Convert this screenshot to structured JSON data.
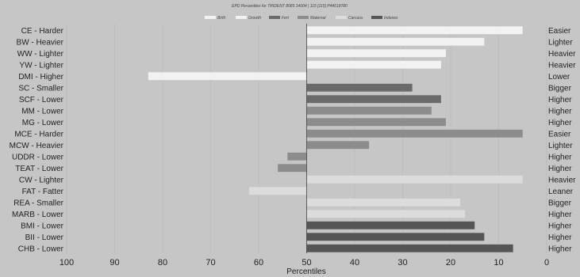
{
  "chart_data": {
    "type": "bar",
    "orientation": "horizontal",
    "title": "EPD Percentiles for TRIDENT 8085 14004 | 115 [115] P44618780",
    "xlabel": "Percentiles",
    "xlim": [
      100,
      0
    ],
    "x_ticks": [
      100,
      90,
      80,
      70,
      60,
      50,
      40,
      30,
      20,
      10,
      0
    ],
    "baseline": 50,
    "grid": true,
    "legend_position": "top-center",
    "legend": [
      {
        "name": "Birth",
        "color": "#f2f2f2"
      },
      {
        "name": "Growth",
        "color": "#f2f2f2"
      },
      {
        "name": "Fert",
        "color": "#6a6a6a"
      },
      {
        "name": "Maternal",
        "color": "#8c8c8c"
      },
      {
        "name": "Carcass",
        "color": "#dcdcdc"
      },
      {
        "name": "Indexes",
        "color": "#555555"
      }
    ],
    "bars": [
      {
        "category": "CE - Harder",
        "opposite": "Easier",
        "value": 5,
        "group": "Birth",
        "color": "#f2f2f2"
      },
      {
        "category": "BW - Heavier",
        "opposite": "Lighter",
        "value": 13,
        "group": "Birth",
        "color": "#f2f2f2"
      },
      {
        "category": "WW - Lighter",
        "opposite": "Heavier",
        "value": 21,
        "group": "Growth",
        "color": "#f2f2f2"
      },
      {
        "category": "YW - Lighter",
        "opposite": "Heavier",
        "value": 22,
        "group": "Growth",
        "color": "#f2f2f2"
      },
      {
        "category": "DMI - Higher",
        "opposite": "Lower",
        "value": 83,
        "group": "Growth",
        "color": "#f2f2f2"
      },
      {
        "category": "SC - Smaller",
        "opposite": "Bigger",
        "value": 28,
        "group": "Fert",
        "color": "#6a6a6a"
      },
      {
        "category": "SCF - Lower",
        "opposite": "Higher",
        "value": 22,
        "group": "Fert",
        "color": "#6a6a6a"
      },
      {
        "category": "MM - Lower",
        "opposite": "Higher",
        "value": 24,
        "group": "Maternal",
        "color": "#8c8c8c"
      },
      {
        "category": "MG - Lower",
        "opposite": "Higher",
        "value": 21,
        "group": "Maternal",
        "color": "#8c8c8c"
      },
      {
        "category": "MCE - Harder",
        "opposite": "Easier",
        "value": 5,
        "group": "Maternal",
        "color": "#8c8c8c"
      },
      {
        "category": "MCW - Heavier",
        "opposite": "Lighter",
        "value": 37,
        "group": "Maternal",
        "color": "#8c8c8c"
      },
      {
        "category": "UDDR - Lower",
        "opposite": "Higher",
        "value": 54,
        "group": "Maternal",
        "color": "#8c8c8c"
      },
      {
        "category": "TEAT - Lower",
        "opposite": "Higher",
        "value": 56,
        "group": "Maternal",
        "color": "#8c8c8c"
      },
      {
        "category": "CW - Lighter",
        "opposite": "Heavier",
        "value": 5,
        "group": "Carcass",
        "color": "#dcdcdc"
      },
      {
        "category": "FAT - Fatter",
        "opposite": "Leaner",
        "value": 62,
        "group": "Carcass",
        "color": "#dcdcdc"
      },
      {
        "category": "REA - Smaller",
        "opposite": "Bigger",
        "value": 18,
        "group": "Carcass",
        "color": "#dcdcdc"
      },
      {
        "category": "MARB - Lower",
        "opposite": "Higher",
        "value": 17,
        "group": "Carcass",
        "color": "#dcdcdc"
      },
      {
        "category": "BMI - Lower",
        "opposite": "Higher",
        "value": 15,
        "group": "Indexes",
        "color": "#555555"
      },
      {
        "category": "BII - Lower",
        "opposite": "Higher",
        "value": 13,
        "group": "Indexes",
        "color": "#555555"
      },
      {
        "category": "CHB - Lower",
        "opposite": "Higher",
        "value": 7,
        "group": "Indexes",
        "color": "#555555"
      }
    ]
  }
}
